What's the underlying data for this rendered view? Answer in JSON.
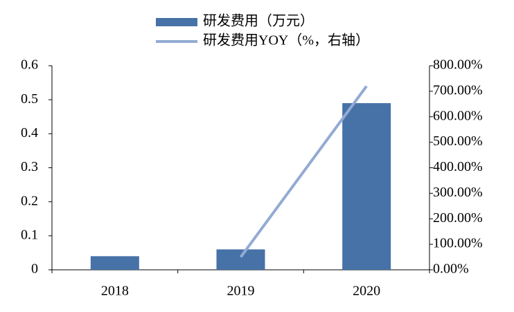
{
  "chart_data": {
    "type": "bar",
    "categories": [
      "2018",
      "2019",
      "2020"
    ],
    "series": [
      {
        "name": "研发费用（万元）",
        "type": "bar",
        "color": "#4672a8",
        "values": [
          0.04,
          0.06,
          0.49
        ]
      },
      {
        "name": "研发费用YOY（%，右轴）",
        "type": "line",
        "axis": "y2",
        "color": "#93aad3",
        "values": [
          null,
          50,
          720
        ]
      }
    ],
    "ylim": [
      0,
      0.6
    ],
    "yticks": [
      0,
      0.1,
      0.2,
      0.3,
      0.4,
      0.5,
      0.6
    ],
    "y2lim": [
      0,
      800
    ],
    "y2ticks": [
      {
        "value": 0,
        "label": "0.00%"
      },
      {
        "value": 100,
        "label": "100.00%"
      },
      {
        "value": 200,
        "label": "200.00%"
      },
      {
        "value": 300,
        "label": "300.00%"
      },
      {
        "value": 400,
        "label": "400.00%"
      },
      {
        "value": 500,
        "label": "500.00%"
      },
      {
        "value": 600,
        "label": "600.00%"
      },
      {
        "value": 700,
        "label": "700.00%"
      },
      {
        "value": 800,
        "label": "800.00%"
      }
    ],
    "legend": "top"
  }
}
